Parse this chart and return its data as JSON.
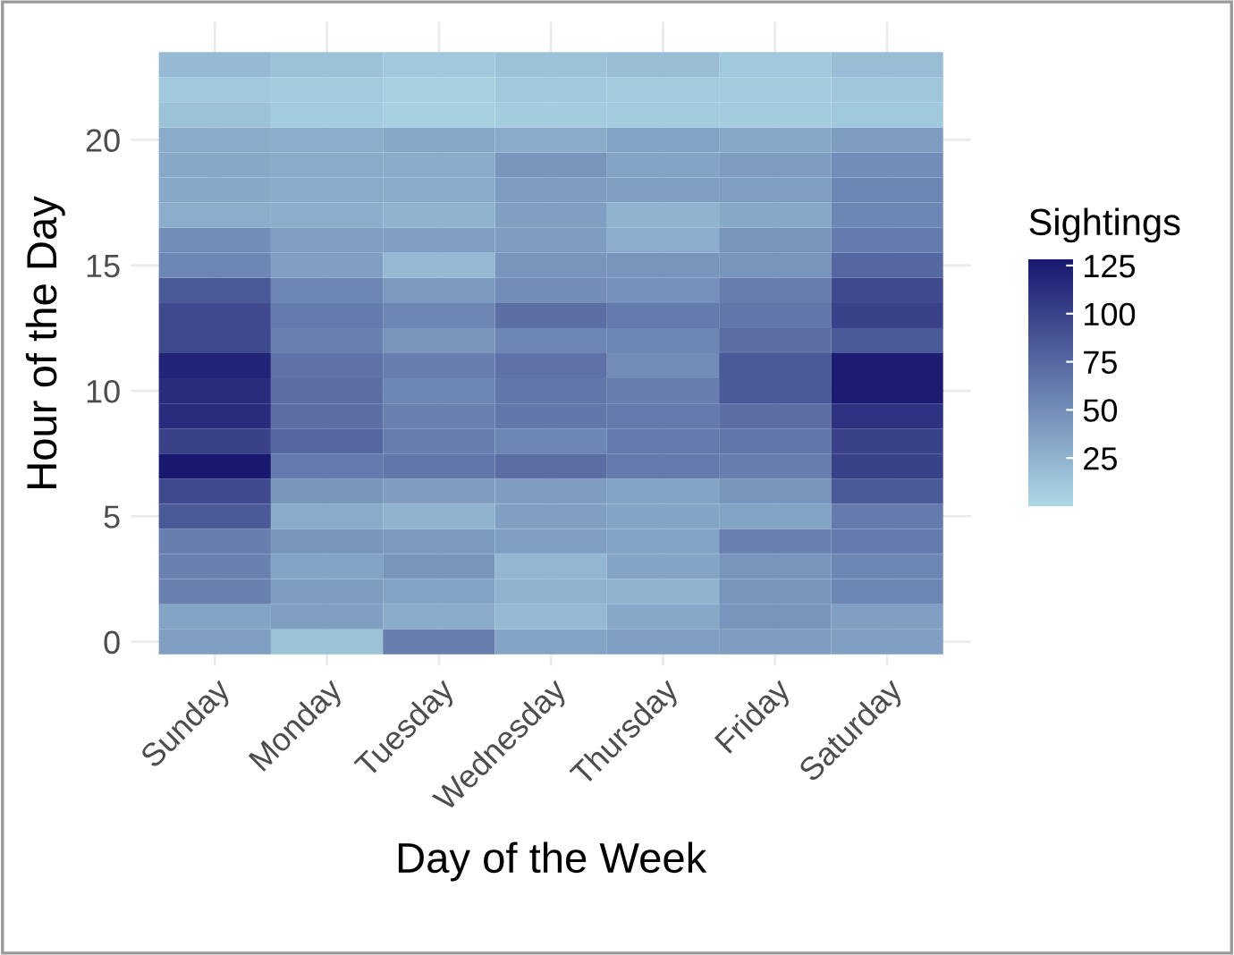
{
  "chart_data": {
    "type": "heatmap",
    "xlabel": "Day of the Week",
    "ylabel": "Hour of the Day",
    "clabel": "Sightings",
    "categories": [
      "Sunday",
      "Monday",
      "Tuesday",
      "Wednesday",
      "Thursday",
      "Friday",
      "Saturday"
    ],
    "y_categories": [
      null,
      null,
      null,
      "20",
      null,
      null,
      null,
      null,
      "15",
      null,
      null,
      null,
      null,
      "10",
      null,
      null,
      null,
      null,
      "5",
      null,
      null,
      null,
      null,
      "0"
    ],
    "cells": [
      [
        20,
        15,
        10,
        15,
        18,
        10,
        18
      ],
      [
        10,
        8,
        5,
        10,
        8,
        8,
        12
      ],
      [
        15,
        8,
        5,
        8,
        8,
        8,
        10
      ],
      [
        30,
        28,
        32,
        30,
        35,
        32,
        40
      ],
      [
        32,
        30,
        30,
        45,
        35,
        40,
        50
      ],
      [
        32,
        30,
        30,
        40,
        38,
        38,
        55
      ],
      [
        28,
        28,
        25,
        38,
        25,
        32,
        55
      ],
      [
        50,
        38,
        38,
        40,
        28,
        45,
        62
      ],
      [
        55,
        38,
        20,
        45,
        45,
        45,
        75
      ],
      [
        85,
        55,
        42,
        50,
        48,
        60,
        95
      ],
      [
        95,
        62,
        55,
        70,
        62,
        65,
        100
      ],
      [
        95,
        58,
        45,
        55,
        55,
        70,
        85
      ],
      [
        120,
        68,
        60,
        68,
        50,
        85,
        125
      ],
      [
        115,
        70,
        55,
        65,
        60,
        85,
        125
      ],
      [
        115,
        70,
        58,
        65,
        62,
        70,
        110
      ],
      [
        100,
        75,
        60,
        55,
        62,
        65,
        100
      ],
      [
        128,
        62,
        65,
        70,
        62,
        60,
        100
      ],
      [
        95,
        45,
        40,
        40,
        35,
        45,
        85
      ],
      [
        85,
        30,
        25,
        38,
        35,
        35,
        62
      ],
      [
        60,
        45,
        42,
        38,
        35,
        58,
        62
      ],
      [
        58,
        35,
        45,
        22,
        35,
        45,
        55
      ],
      [
        58,
        40,
        35,
        25,
        25,
        45,
        55
      ],
      [
        35,
        38,
        30,
        20,
        32,
        45,
        38
      ],
      [
        38,
        15,
        60,
        35,
        38,
        40,
        38
      ]
    ],
    "colors": [
      "#add8e6",
      "#191970"
    ],
    "clim": [
      0,
      128
    ],
    "cticks": [
      25,
      50,
      75,
      100,
      125
    ],
    "grid": true
  }
}
